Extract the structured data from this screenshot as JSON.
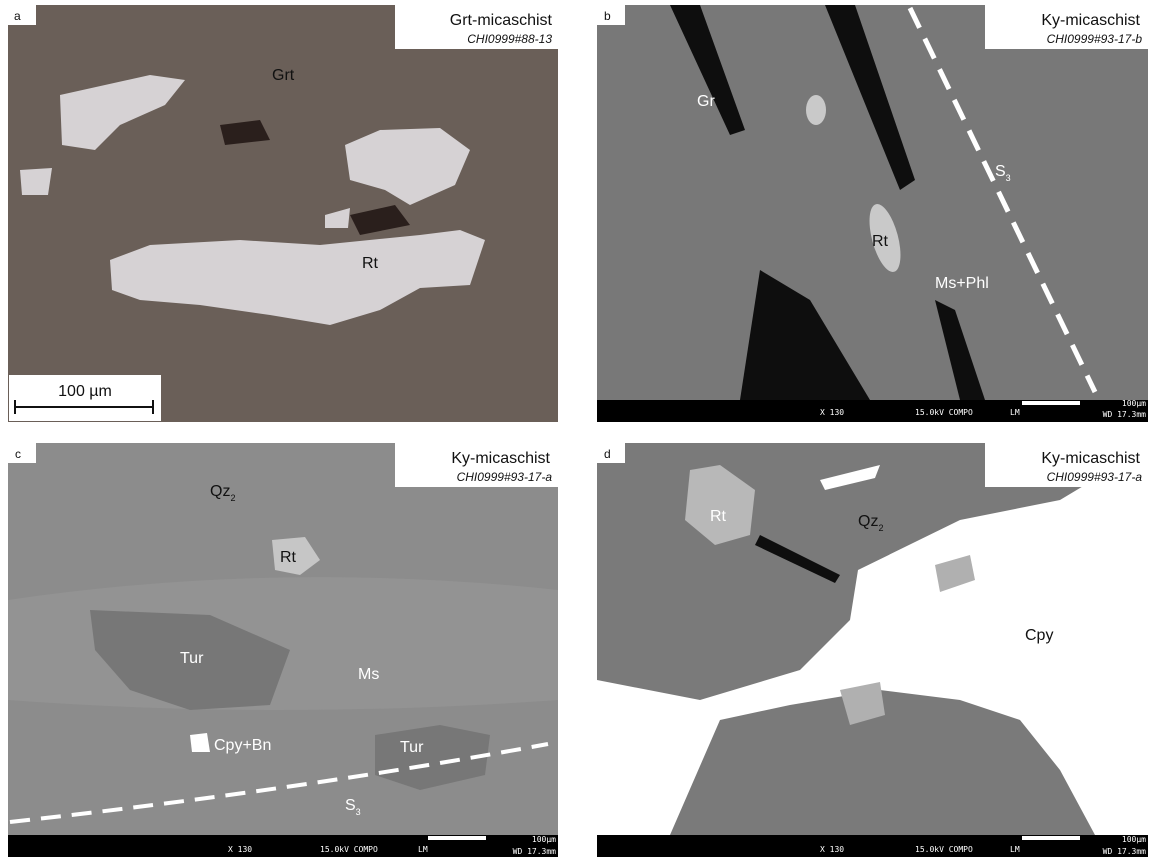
{
  "panels": [
    {
      "letter": "a",
      "title": "Grt-micaschist",
      "sample": "CHI0999#88-13",
      "labels": [
        {
          "text": "Grt"
        },
        {
          "text": "Rt"
        }
      ],
      "scale_bar": "100 µm"
    },
    {
      "letter": "b",
      "title": "Ky-micaschist",
      "sample": "CHI0999#93-17-b",
      "labels": [
        {
          "text": "Gr"
        },
        {
          "text": "Rt"
        },
        {
          "text": "Ms+Phl"
        },
        {
          "text": "S",
          "sub": "3"
        }
      ],
      "footer": {
        "mag": "X 130",
        "kv": "15.0kV COMPO",
        "mode": "LM",
        "scale": "100µm",
        "wd": "WD 17.3mm"
      }
    },
    {
      "letter": "c",
      "title": "Ky-micaschist",
      "sample": "CHI0999#93-17-a",
      "labels": [
        {
          "text": "Qz",
          "sub": "2"
        },
        {
          "text": "Rt"
        },
        {
          "text": "Tur"
        },
        {
          "text": "Ms"
        },
        {
          "text": "Cpy+Bn"
        },
        {
          "text": "Tur"
        },
        {
          "text": "S",
          "sub": "3"
        }
      ],
      "footer": {
        "mag": "X 130",
        "kv": "15.0kV COMPO",
        "mode": "LM",
        "scale": "100µm",
        "wd": "WD 17.3mm"
      }
    },
    {
      "letter": "d",
      "title": "Ky-micaschist",
      "sample": "CHI0999#93-17-a",
      "labels": [
        {
          "text": "Rt"
        },
        {
          "text": "Qz",
          "sub": "2"
        },
        {
          "text": "Cpy"
        }
      ],
      "footer": {
        "mag": "X 130",
        "kv": "15.0kV COMPO",
        "mode": "LM",
        "scale": "100µm",
        "wd": "WD 17.3mm"
      }
    }
  ]
}
